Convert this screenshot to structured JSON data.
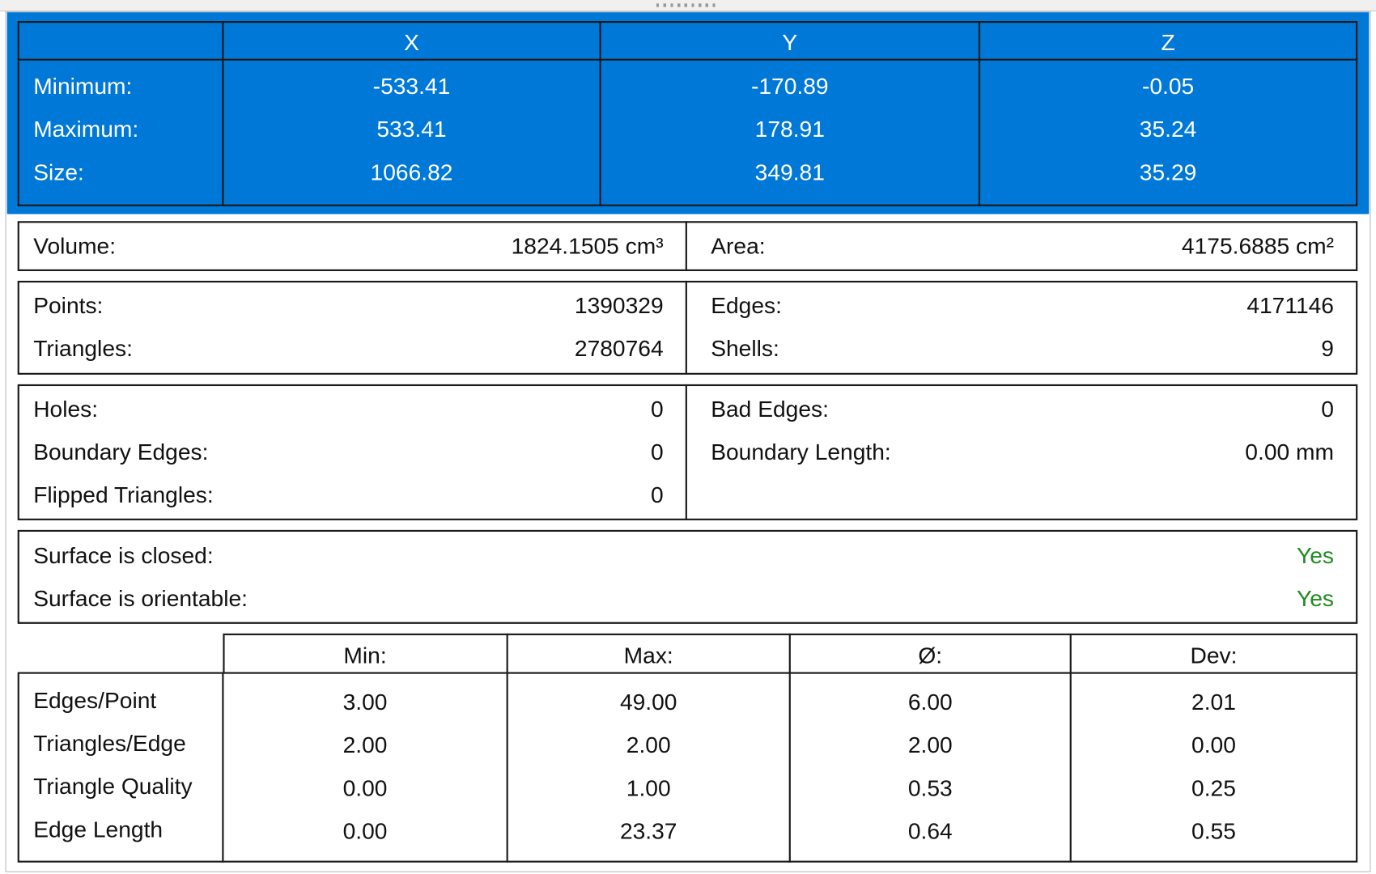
{
  "bounding_box": {
    "headers": [
      "X",
      "Y",
      "Z"
    ],
    "rows": [
      {
        "label": "Minimum:",
        "values": [
          "-533.41",
          "-170.89",
          "-0.05"
        ]
      },
      {
        "label": "Maximum:",
        "values": [
          "533.41",
          "178.91",
          "35.24"
        ]
      },
      {
        "label": "Size:",
        "values": [
          "1066.82",
          "349.81",
          "35.29"
        ]
      }
    ]
  },
  "measures": {
    "left": [
      {
        "label": "Volume:",
        "value": "1824.1505 cm³"
      }
    ],
    "right": [
      {
        "label": "Area:",
        "value": "4175.6885 cm²"
      }
    ]
  },
  "counts": {
    "left": [
      {
        "label": "Points:",
        "value": "1390329"
      },
      {
        "label": "Triangles:",
        "value": "2780764"
      }
    ],
    "right": [
      {
        "label": "Edges:",
        "value": "4171146"
      },
      {
        "label": "Shells:",
        "value": "9"
      }
    ]
  },
  "defects": {
    "left": [
      {
        "label": "Holes:",
        "value": "0"
      },
      {
        "label": "Boundary Edges:",
        "value": "0"
      },
      {
        "label": "Flipped Triangles:",
        "value": "0"
      }
    ],
    "right": [
      {
        "label": "Bad Edges:",
        "value": "0"
      },
      {
        "label": "Boundary Length:",
        "value": "0.00 mm"
      }
    ]
  },
  "surface": {
    "rows": [
      {
        "label": "Surface is closed:",
        "value": "Yes"
      },
      {
        "label": "Surface is orientable:",
        "value": "Yes"
      }
    ]
  },
  "statistics": {
    "headers": [
      "Min:",
      "Max:",
      "Ø:",
      "Dev:"
    ],
    "rows": [
      {
        "label": "Edges/Point",
        "values": [
          "3.00",
          "49.00",
          "6.00",
          "2.01"
        ]
      },
      {
        "label": "Triangles/Edge",
        "values": [
          "2.00",
          "2.00",
          "2.00",
          "0.00"
        ]
      },
      {
        "label": "Triangle Quality",
        "values": [
          "0.00",
          "1.00",
          "0.53",
          "0.25"
        ]
      },
      {
        "label": "Edge Length",
        "values": [
          "0.00",
          "23.37",
          "0.64",
          "0.55"
        ]
      }
    ]
  }
}
